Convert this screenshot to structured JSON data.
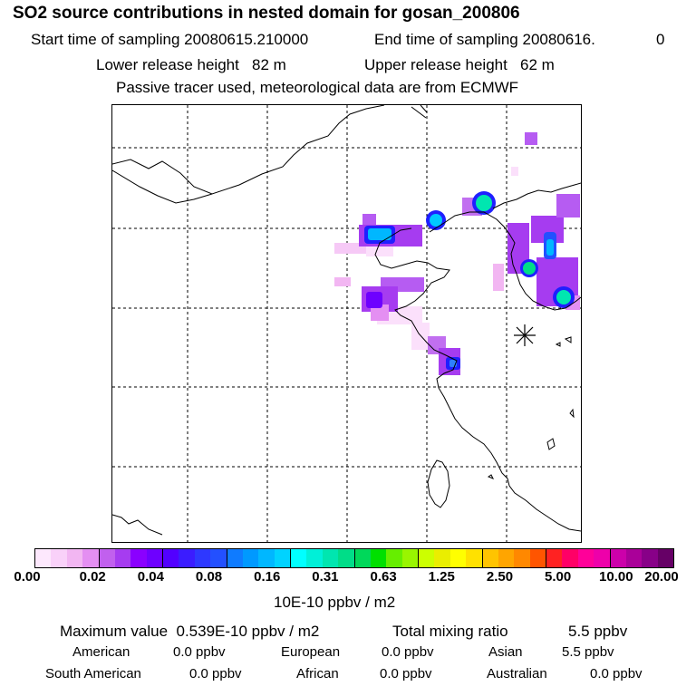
{
  "title": "SO2 source contributions in nested domain for gosan_200806",
  "header": {
    "start_label": "Start time of sampling",
    "start_value": "20080615.210000",
    "end_label": "End time of sampling",
    "end_value": "20080616.",
    "end_suffix": "0",
    "lower_label": "Lower release height",
    "lower_value": "82 m",
    "upper_label": "Upper release height",
    "upper_value": "62 m",
    "note": "Passive tracer used, meteorological data are from ECMWF"
  },
  "colorbar": {
    "colors": [
      "#fde8fd",
      "#f9d1f9",
      "#f2b6f2",
      "#e48ff2",
      "#c160ee",
      "#a63cf0",
      "#8a00ff",
      "#6e00ff",
      "#5200ff",
      "#3b1cff",
      "#2e38ff",
      "#2350ff",
      "#0f7bff",
      "#0099ff",
      "#00b7ff",
      "#00d3ff",
      "#00ffff",
      "#00f0d8",
      "#00e6b0",
      "#00dd88",
      "#00d85a",
      "#00e000",
      "#66ee00",
      "#99f500",
      "#ccff00",
      "#eaee00",
      "#ffff00",
      "#ffe100",
      "#ffc400",
      "#ffa500",
      "#ff8800",
      "#ff5500",
      "#ff2222",
      "#ff0066",
      "#ff0099",
      "#ee00aa",
      "#cc00aa",
      "#aa0099",
      "#880088",
      "#660066"
    ],
    "ticks": [
      "0.00",
      "0.02",
      "0.04",
      "0.08",
      "0.16",
      "0.31",
      "0.63",
      "1.25",
      "2.50",
      "5.00",
      "10.00",
      "20.00"
    ],
    "units": "10E-10 ppbv / m2"
  },
  "summary": {
    "max_label": "Maximum value",
    "max_value": "0.539E-10 ppbv / m2",
    "total_label": "Total mixing ratio",
    "total_value": "5.5 ppbv",
    "regions": [
      {
        "name": "American",
        "value": "0.0 ppbv"
      },
      {
        "name": "European",
        "value": "0.0 ppbv"
      },
      {
        "name": "Asian",
        "value": "5.5 ppbv"
      },
      {
        "name": "South American",
        "value": "0.0 ppbv"
      },
      {
        "name": "African",
        "value": "0.0 ppbv"
      },
      {
        "name": "Australian",
        "value": "0.0 ppbv"
      }
    ]
  }
}
